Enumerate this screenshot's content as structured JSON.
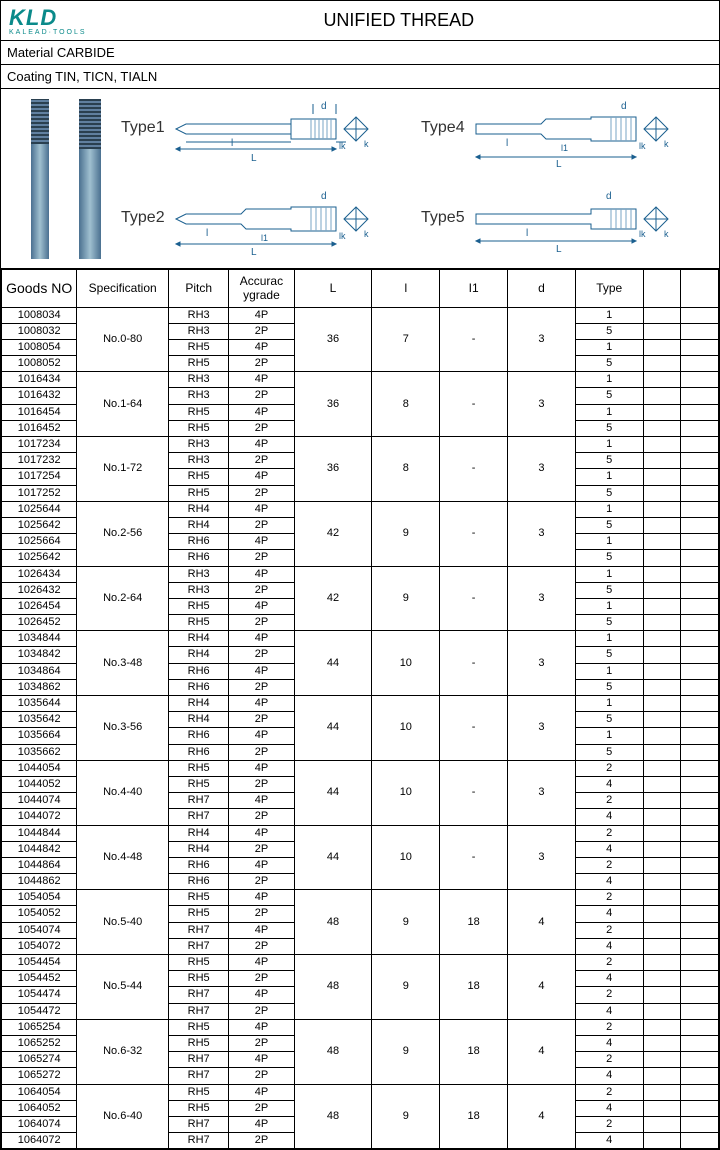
{
  "logo_text": "KLD",
  "logo_sub": "KALEAD·TOOLS",
  "title": "UNIFIED THREAD",
  "material_line": "Material  CARBIDE",
  "coating_line": "Coating   TIN,  TICN,  TIALN",
  "type_labels": {
    "t1": "Type1",
    "t2": "Type2",
    "t4": "Type4",
    "t5": "Type5"
  },
  "dim_labels": {
    "d": "d",
    "L": "L",
    "l": "l",
    "l1": "l1",
    "lk": "lk",
    "k": "k"
  },
  "headers": [
    "Goods NO",
    "Specification",
    "Pitch",
    "Accuracygrade",
    "L",
    "l",
    "I1",
    "d",
    "Type",
    "",
    ""
  ],
  "col_widths": [
    "60",
    "70",
    "48",
    "52",
    "62",
    "54",
    "54",
    "54",
    "54",
    "30",
    "30"
  ],
  "groups": [
    {
      "spec": "No.0-80",
      "L": "36",
      "l": "7",
      "l1": "-",
      "d": "3",
      "rows": [
        {
          "g": "1008034",
          "p": "RH3",
          "a": "4P",
          "t": "1"
        },
        {
          "g": "1008032",
          "p": "RH3",
          "a": "2P",
          "t": "5"
        },
        {
          "g": "1008054",
          "p": "RH5",
          "a": "4P",
          "t": "1"
        },
        {
          "g": "1008052",
          "p": "RH5",
          "a": "2P",
          "t": "5"
        }
      ]
    },
    {
      "spec": "No.1-64",
      "L": "36",
      "l": "8",
      "l1": "-",
      "d": "3",
      "rows": [
        {
          "g": "1016434",
          "p": "RH3",
          "a": "4P",
          "t": "1"
        },
        {
          "g": "1016432",
          "p": "RH3",
          "a": "2P",
          "t": "5"
        },
        {
          "g": "1016454",
          "p": "RH5",
          "a": "4P",
          "t": "1"
        },
        {
          "g": "1016452",
          "p": "RH5",
          "a": "2P",
          "t": "5"
        }
      ]
    },
    {
      "spec": "No.1-72",
      "L": "36",
      "l": "8",
      "l1": "-",
      "d": "3",
      "rows": [
        {
          "g": "1017234",
          "p": "RH3",
          "a": "4P",
          "t": "1"
        },
        {
          "g": "1017232",
          "p": "RH3",
          "a": "2P",
          "t": "5"
        },
        {
          "g": "1017254",
          "p": "RH5",
          "a": "4P",
          "t": "1"
        },
        {
          "g": "1017252",
          "p": "RH5",
          "a": "2P",
          "t": "5"
        }
      ]
    },
    {
      "spec": "No.2-56",
      "L": "42",
      "l": "9",
      "l1": "-",
      "d": "3",
      "rows": [
        {
          "g": "1025644",
          "p": "RH4",
          "a": "4P",
          "t": "1"
        },
        {
          "g": "1025642",
          "p": "RH4",
          "a": "2P",
          "t": "5"
        },
        {
          "g": "1025664",
          "p": "RH6",
          "a": "4P",
          "t": "1"
        },
        {
          "g": "1025642",
          "p": "RH6",
          "a": "2P",
          "t": "5"
        }
      ]
    },
    {
      "spec": "No.2-64",
      "L": "42",
      "l": "9",
      "l1": "-",
      "d": "3",
      "rows": [
        {
          "g": "1026434",
          "p": "RH3",
          "a": "4P",
          "t": "1"
        },
        {
          "g": "1026432",
          "p": "RH3",
          "a": "2P",
          "t": "5"
        },
        {
          "g": "1026454",
          "p": "RH5",
          "a": "4P",
          "t": "1"
        },
        {
          "g": "1026452",
          "p": "RH5",
          "a": "2P",
          "t": "5"
        }
      ]
    },
    {
      "spec": "No.3-48",
      "L": "44",
      "l": "10",
      "l1": "-",
      "d": "3",
      "rows": [
        {
          "g": "1034844",
          "p": "RH4",
          "a": "4P",
          "t": "1"
        },
        {
          "g": "1034842",
          "p": "RH4",
          "a": "2P",
          "t": "5"
        },
        {
          "g": "1034864",
          "p": "RH6",
          "a": "4P",
          "t": "1"
        },
        {
          "g": "1034862",
          "p": "RH6",
          "a": "2P",
          "t": "5"
        }
      ]
    },
    {
      "spec": "No.3-56",
      "L": "44",
      "l": "10",
      "l1": "-",
      "d": "3",
      "rows": [
        {
          "g": "1035644",
          "p": "RH4",
          "a": "4P",
          "t": "1"
        },
        {
          "g": "1035642",
          "p": "RH4",
          "a": "2P",
          "t": "5"
        },
        {
          "g": "1035664",
          "p": "RH6",
          "a": "4P",
          "t": "1"
        },
        {
          "g": "1035662",
          "p": "RH6",
          "a": "2P",
          "t": "5"
        }
      ]
    },
    {
      "spec": "No.4-40",
      "L": "44",
      "l": "10",
      "l1": "-",
      "d": "3",
      "rows": [
        {
          "g": "1044054",
          "p": "RH5",
          "a": "4P",
          "t": "2"
        },
        {
          "g": "1044052",
          "p": "RH5",
          "a": "2P",
          "t": "4"
        },
        {
          "g": "1044074",
          "p": "RH7",
          "a": "4P",
          "t": "2"
        },
        {
          "g": "1044072",
          "p": "RH7",
          "a": "2P",
          "t": "4"
        }
      ]
    },
    {
      "spec": "No.4-48",
      "L": "44",
      "l": "10",
      "l1": "-",
      "d": "3",
      "rows": [
        {
          "g": "1044844",
          "p": "RH4",
          "a": "4P",
          "t": "2"
        },
        {
          "g": "1044842",
          "p": "RH4",
          "a": "2P",
          "t": "4"
        },
        {
          "g": "1044864",
          "p": "RH6",
          "a": "4P",
          "t": "2"
        },
        {
          "g": "1044862",
          "p": "RH6",
          "a": "2P",
          "t": "4"
        }
      ]
    },
    {
      "spec": "No.5-40",
      "L": "48",
      "l": "9",
      "l1": "18",
      "d": "4",
      "rows": [
        {
          "g": "1054054",
          "p": "RH5",
          "a": "4P",
          "t": "2"
        },
        {
          "g": "1054052",
          "p": "RH5",
          "a": "2P",
          "t": "4"
        },
        {
          "g": "1054074",
          "p": "RH7",
          "a": "4P",
          "t": "2"
        },
        {
          "g": "1054072",
          "p": "RH7",
          "a": "2P",
          "t": "4"
        }
      ]
    },
    {
      "spec": "No.5-44",
      "L": "48",
      "l": "9",
      "l1": "18",
      "d": "4",
      "rows": [
        {
          "g": "1054454",
          "p": "RH5",
          "a": "4P",
          "t": "2"
        },
        {
          "g": "1054452",
          "p": "RH5",
          "a": "2P",
          "t": "4"
        },
        {
          "g": "1054474",
          "p": "RH7",
          "a": "4P",
          "t": "2"
        },
        {
          "g": "1054472",
          "p": "RH7",
          "a": "2P",
          "t": "4"
        }
      ]
    },
    {
      "spec": "No.6-32",
      "L": "48",
      "l": "9",
      "l1": "18",
      "d": "4",
      "rows": [
        {
          "g": "1065254",
          "p": "RH5",
          "a": "4P",
          "t": "2"
        },
        {
          "g": "1065252",
          "p": "RH5",
          "a": "2P",
          "t": "4"
        },
        {
          "g": "1065274",
          "p": "RH7",
          "a": "4P",
          "t": "2"
        },
        {
          "g": "1065272",
          "p": "RH7",
          "a": "2P",
          "t": "4"
        }
      ]
    },
    {
      "spec": "No.6-40",
      "L": "48",
      "l": "9",
      "l1": "18",
      "d": "4",
      "rows": [
        {
          "g": "1064054",
          "p": "RH5",
          "a": "4P",
          "t": "2"
        },
        {
          "g": "1064052",
          "p": "RH5",
          "a": "2P",
          "t": "4"
        },
        {
          "g": "1064074",
          "p": "RH7",
          "a": "4P",
          "t": "2"
        },
        {
          "g": "1064072",
          "p": "RH7",
          "a": "2P",
          "t": "4"
        }
      ]
    }
  ],
  "colors": {
    "line": "#1a5f8f",
    "ink": "#000"
  }
}
